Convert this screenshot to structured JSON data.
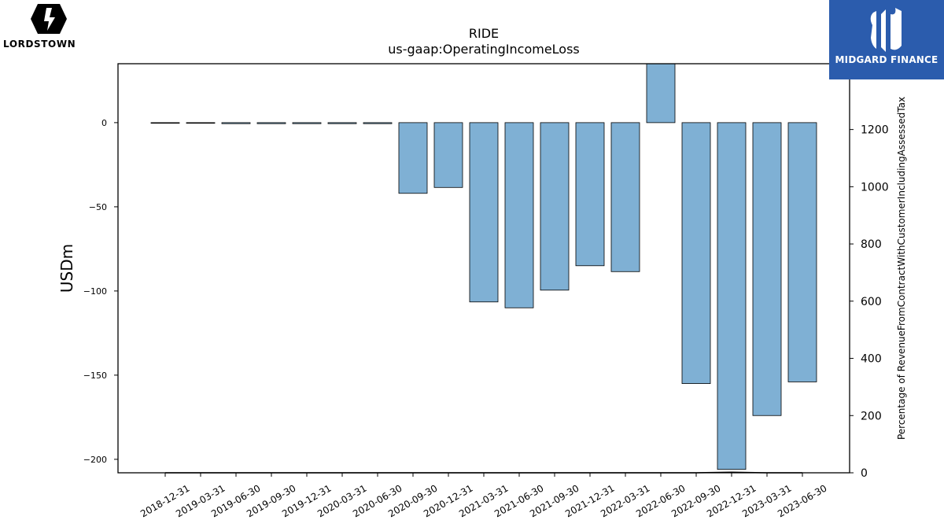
{
  "logos": {
    "left_text": "LORDSTOWN",
    "right_text": "MIDGARD FINANCE"
  },
  "chart_data": {
    "type": "bar",
    "title": "RIDE",
    "subtitle": "us-gaap:OperatingIncomeLoss",
    "ylabel": "USDm",
    "y2label": "Percentage of RevenueFromContractWithCustomerIncludingAssessedTax",
    "ylim": [
      -208,
      35
    ],
    "y2lim": [
      0,
      1430
    ],
    "yticks": [
      0,
      -50,
      -100,
      -150,
      -200
    ],
    "ytick_labels": [
      "0",
      "−50",
      "−100",
      "−150",
      "−200"
    ],
    "y2ticks": [
      0,
      200,
      400,
      600,
      800,
      1000,
      1200
    ],
    "y2tick_labels": [
      "0",
      "200",
      "400",
      "600",
      "800",
      "1000",
      "1200"
    ],
    "grid": false,
    "bar_color": "#7fb0d4",
    "categories": [
      "2018-12-31",
      "2019-03-31",
      "2019-06-30",
      "2019-09-30",
      "2019-12-31",
      "2020-03-31",
      "2020-06-30",
      "2020-09-30",
      "2020-12-31",
      "2021-03-31",
      "2021-06-30",
      "2021-09-30",
      "2021-12-31",
      "2022-03-31",
      "2022-06-30",
      "2022-09-30",
      "2022-12-31",
      "2023-03-31",
      "2023-06-30"
    ],
    "series": [
      {
        "values": [
          -0.2,
          -0.3,
          -0.6,
          -0.6,
          -0.6,
          -0.6,
          -0.6,
          -42,
          -38.5,
          -106.5,
          -110,
          -99.5,
          -85,
          -88.5,
          50,
          -155,
          -206,
          -174,
          -154
        ]
      },
      {
        "axis": "right",
        "values": [
          null,
          null,
          null,
          null,
          null,
          null,
          null,
          null,
          null,
          null,
          null,
          null,
          null,
          null,
          null,
          null,
          2.0,
          null,
          null
        ]
      }
    ]
  }
}
